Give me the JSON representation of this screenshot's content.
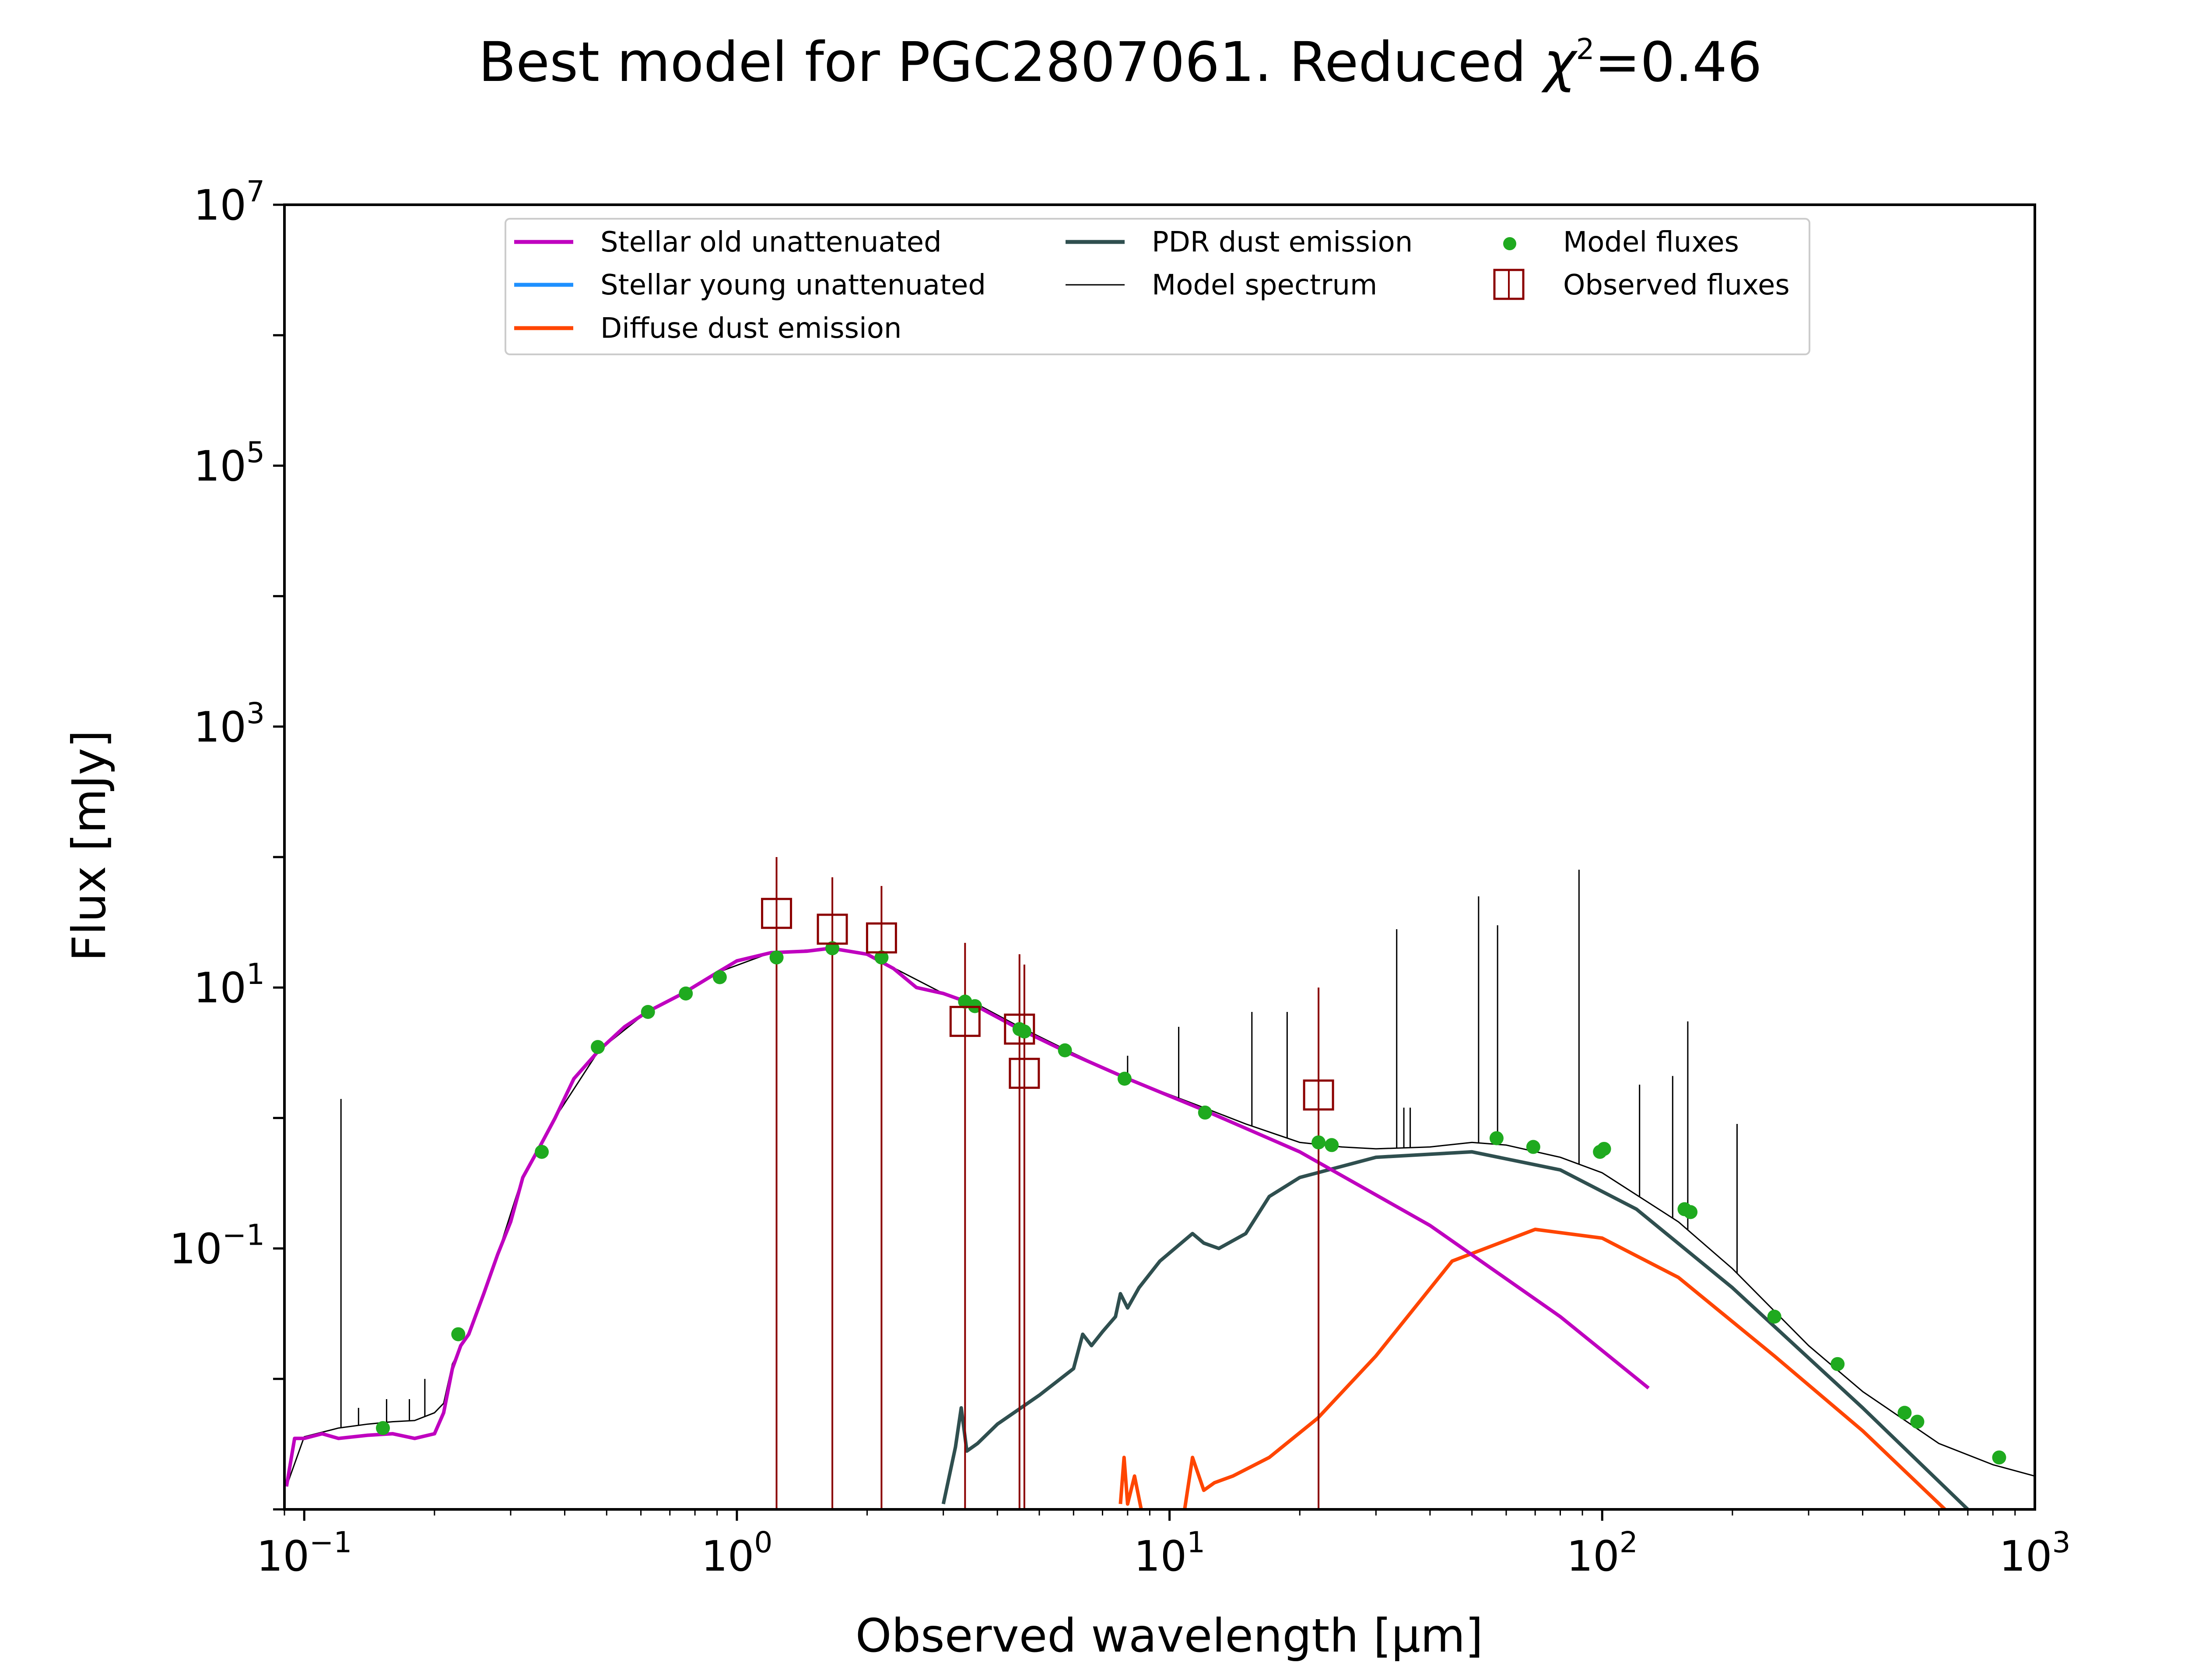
{
  "chart_data": {
    "type": "line",
    "title": "Best model for PGC2807061. Reduced χ²=0.46",
    "title_main": "Best model for PGC2807061. Reduced ",
    "title_chi": "χ",
    "title_chi_exp": "2",
    "title_chi_val": "=0.46",
    "xlabel": "Observed wavelength [μm]",
    "ylabel": "Flux [mJy]",
    "xscale": "log",
    "yscale": "log",
    "xlim": [
      0.09,
      1000
    ],
    "ylim": [
      0.001,
      10000000
    ],
    "x_ticks": [
      {
        "value": 0.1,
        "base": "10",
        "exp": "−1"
      },
      {
        "value": 1,
        "base": "10",
        "exp": "0"
      },
      {
        "value": 10,
        "base": "10",
        "exp": "1"
      },
      {
        "value": 100,
        "base": "10",
        "exp": "2"
      },
      {
        "value": 1000,
        "base": "10",
        "exp": "3"
      }
    ],
    "y_ticks": [
      {
        "value": 0.1,
        "base": "10",
        "exp": "−1"
      },
      {
        "value": 10,
        "base": "10",
        "exp": "1"
      },
      {
        "value": 1000,
        "base": "10",
        "exp": "3"
      },
      {
        "value": 100000,
        "base": "10",
        "exp": "5"
      },
      {
        "value": 10000000,
        "base": "10",
        "exp": "7"
      }
    ],
    "grid": false,
    "legend_position": "top",
    "legend": [
      {
        "label": "Stellar old unattenuated",
        "color": "#bf00bf",
        "kind": "line"
      },
      {
        "label": "Stellar young unattenuated",
        "color": "#1e90ff",
        "kind": "line"
      },
      {
        "label": "Diffuse dust emission",
        "color": "#ff4500",
        "kind": "line"
      },
      {
        "label": "PDR dust emission",
        "color": "#2f4f4f",
        "kind": "line"
      },
      {
        "label": "Model spectrum",
        "color": "#000000",
        "kind": "thinline"
      },
      {
        "label": "Model fluxes",
        "color": "#1faa1f",
        "kind": "dot"
      },
      {
        "label": "Observed fluxes",
        "color": "#8b0000",
        "kind": "square"
      }
    ],
    "series": [
      {
        "name": "Stellar old unattenuated",
        "color": "#bf00bf",
        "x": [
          0.091,
          0.095,
          0.1,
          0.11,
          0.12,
          0.14,
          0.16,
          0.18,
          0.2,
          0.21,
          0.22,
          0.23,
          0.24,
          0.26,
          0.28,
          0.3,
          0.32,
          0.35,
          0.38,
          0.42,
          0.48,
          0.55,
          0.62,
          0.75,
          0.9,
          1.0,
          1.2,
          1.45,
          1.65,
          2.0,
          2.3,
          2.6,
          3.0,
          3.5,
          4.5,
          5.8,
          8,
          12,
          20,
          40,
          80,
          128
        ],
        "y": [
          0.0015,
          0.0035,
          0.0035,
          0.0038,
          0.0035,
          0.0037,
          0.0038,
          0.0035,
          0.0038,
          0.0055,
          0.012,
          0.018,
          0.022,
          0.045,
          0.09,
          0.16,
          0.35,
          0.6,
          1.0,
          2.0,
          3.3,
          5.0,
          6.5,
          9.0,
          13,
          16,
          18.5,
          19,
          20,
          18,
          14,
          10,
          9,
          7.5,
          4.8,
          3.2,
          2.0,
          1.15,
          0.55,
          0.15,
          0.03,
          0.0085
        ]
      },
      {
        "name": "PDR dust emission",
        "color": "#2f4f4f",
        "x": [
          3.0,
          3.2,
          3.3,
          3.4,
          3.6,
          4.0,
          5.0,
          6.0,
          6.3,
          6.6,
          7.0,
          7.5,
          7.7,
          8.0,
          8.5,
          9.5,
          11.3,
          12,
          13,
          15,
          17,
          20,
          30,
          50,
          80,
          120,
          200,
          400,
          700
        ],
        "y": [
          0.0011,
          0.003,
          0.006,
          0.0028,
          0.0032,
          0.0045,
          0.0075,
          0.012,
          0.022,
          0.018,
          0.023,
          0.03,
          0.045,
          0.035,
          0.05,
          0.08,
          0.13,
          0.11,
          0.1,
          0.13,
          0.25,
          0.35,
          0.5,
          0.55,
          0.4,
          0.2,
          0.05,
          0.006,
          0.001
        ]
      },
      {
        "name": "Diffuse dust emission",
        "color": "#ff4500",
        "x": [
          7.7,
          7.85,
          8.0,
          8.3,
          8.6,
          9.0,
          10.5,
          11.3,
          12,
          12.7,
          14,
          17,
          22,
          30,
          45,
          70,
          100,
          150,
          250,
          400,
          620
        ],
        "y": [
          0.0011,
          0.0025,
          0.0011,
          0.0018,
          0.001,
          0.0008,
          0.0005,
          0.0025,
          0.0014,
          0.0016,
          0.0018,
          0.0025,
          0.005,
          0.015,
          0.08,
          0.14,
          0.12,
          0.06,
          0.015,
          0.004,
          0.001
        ]
      },
      {
        "name": "Model spectrum",
        "color": "#000000",
        "x": [
          0.091,
          0.1,
          0.12,
          0.14,
          0.16,
          0.18,
          0.2,
          0.21,
          0.22,
          0.24,
          0.28,
          0.32,
          0.38,
          0.48,
          0.62,
          0.75,
          0.9,
          1.2,
          1.65,
          2.0,
          3.0,
          3.5,
          4.5,
          5.8,
          8,
          12,
          15,
          20,
          25,
          30,
          40,
          50,
          60,
          80,
          100,
          150,
          200,
          300,
          400,
          600,
          800,
          1000
        ],
        "y": [
          0.0015,
          0.0036,
          0.0042,
          0.0045,
          0.0047,
          0.0048,
          0.0055,
          0.0065,
          0.013,
          0.023,
          0.09,
          0.36,
          1.0,
          3.3,
          6.5,
          9.0,
          13,
          18.5,
          20,
          18,
          9,
          7.8,
          5.0,
          3.3,
          2.0,
          1.2,
          0.9,
          0.65,
          0.6,
          0.58,
          0.6,
          0.65,
          0.62,
          0.5,
          0.38,
          0.16,
          0.07,
          0.018,
          0.008,
          0.0032,
          0.0022,
          0.0018
        ]
      }
    ],
    "emission_lines": [
      {
        "x": 0.1216,
        "y_top": 1.4
      },
      {
        "x": 0.1335,
        "y_top": 0.006
      },
      {
        "x": 0.155,
        "y_top": 0.007
      },
      {
        "x": 0.175,
        "y_top": 0.007
      },
      {
        "x": 0.19,
        "y_top": 0.01
      },
      {
        "x": 8.0,
        "y_top": 3.0
      },
      {
        "x": 10.5,
        "y_top": 5.0
      },
      {
        "x": 15.5,
        "y_top": 6.5
      },
      {
        "x": 18.7,
        "y_top": 6.5
      },
      {
        "x": 33.5,
        "y_top": 28
      },
      {
        "x": 34.8,
        "y_top": 1.2
      },
      {
        "x": 36.0,
        "y_top": 1.2
      },
      {
        "x": 51.8,
        "y_top": 50
      },
      {
        "x": 57.3,
        "y_top": 30
      },
      {
        "x": 88.4,
        "y_top": 80
      },
      {
        "x": 122,
        "y_top": 1.8
      },
      {
        "x": 145.5,
        "y_top": 2.1
      },
      {
        "x": 157.7,
        "y_top": 5.5
      },
      {
        "x": 205,
        "y_top": 0.9
      }
    ],
    "model_fluxes": {
      "x": [
        0.152,
        0.227,
        0.354,
        0.477,
        0.623,
        0.762,
        0.913,
        1.235,
        1.662,
        2.159,
        3.368,
        3.55,
        4.5,
        4.618,
        5.731,
        7.872,
        12.08,
        22.1,
        23.7,
        57.0,
        69.3,
        98.8,
        101.0,
        155,
        160,
        250,
        350,
        500,
        535,
        827
      ],
      "y": [
        0.0042,
        0.022,
        0.55,
        3.5,
        6.5,
        9.0,
        12.0,
        17.0,
        20.0,
        17.0,
        7.8,
        7.2,
        4.8,
        4.6,
        3.3,
        2.0,
        1.1,
        0.65,
        0.62,
        0.7,
        0.6,
        0.55,
        0.58,
        0.2,
        0.19,
        0.03,
        0.013,
        0.0055,
        0.0047,
        0.0025
      ]
    },
    "observed_fluxes": {
      "x": [
        1.235,
        1.662,
        2.159,
        3.368,
        4.5,
        4.618,
        22.1
      ],
      "y": [
        37,
        28,
        24,
        5.5,
        4.8,
        2.2,
        1.5
      ],
      "err_top": [
        100,
        70,
        60,
        22,
        18,
        15,
        10
      ]
    }
  }
}
